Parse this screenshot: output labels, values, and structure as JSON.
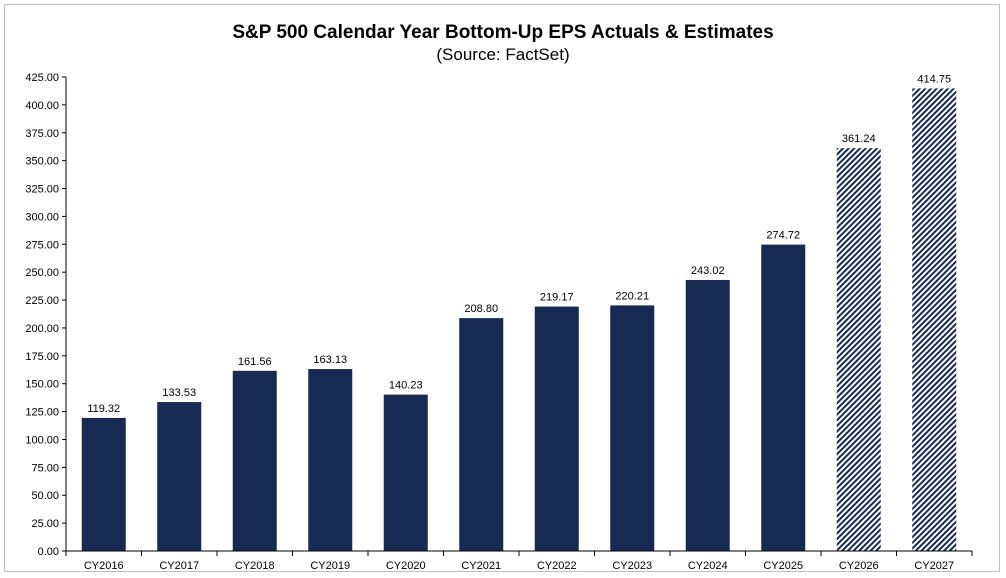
{
  "chart_data": {
    "type": "bar",
    "title": "S&P 500 Calendar Year Bottom-Up EPS Actuals & Estimates",
    "subtitle": "(Source: FactSet)",
    "categories": [
      "CY2016",
      "CY2017",
      "CY2018",
      "CY2019",
      "CY2020",
      "CY2021",
      "CY2022",
      "CY2023",
      "CY2024",
      "CY2025",
      "CY2026",
      "CY2027"
    ],
    "values": [
      119.32,
      133.53,
      161.56,
      163.13,
      140.23,
      208.8,
      219.17,
      220.21,
      243.02,
      274.72,
      361.24,
      414.75
    ],
    "data_labels": [
      "119.32",
      "133.53",
      "161.56",
      "163.13",
      "140.23",
      "208.80",
      "219.17",
      "220.21",
      "243.02",
      "274.72",
      "361.24",
      "414.75"
    ],
    "bar_style": [
      "solid",
      "solid",
      "solid",
      "solid",
      "solid",
      "solid",
      "solid",
      "solid",
      "solid",
      "solid",
      "hatched",
      "hatched"
    ],
    "ylim": [
      0,
      425
    ],
    "ytick_step": 25,
    "ytick_labels": [
      "0.00",
      "25.00",
      "50.00",
      "75.00",
      "100.00",
      "125.00",
      "150.00",
      "175.00",
      "200.00",
      "225.00",
      "250.00",
      "275.00",
      "300.00",
      "325.00",
      "350.00",
      "375.00",
      "400.00",
      "425.00"
    ],
    "xlabel": "",
    "ylabel": "",
    "grid": false,
    "legend": "none",
    "colors": {
      "bar": "#172a54",
      "hatch_stripe": "#172a54",
      "hatch_bg": "#ffffff",
      "axis": "#000000"
    }
  }
}
